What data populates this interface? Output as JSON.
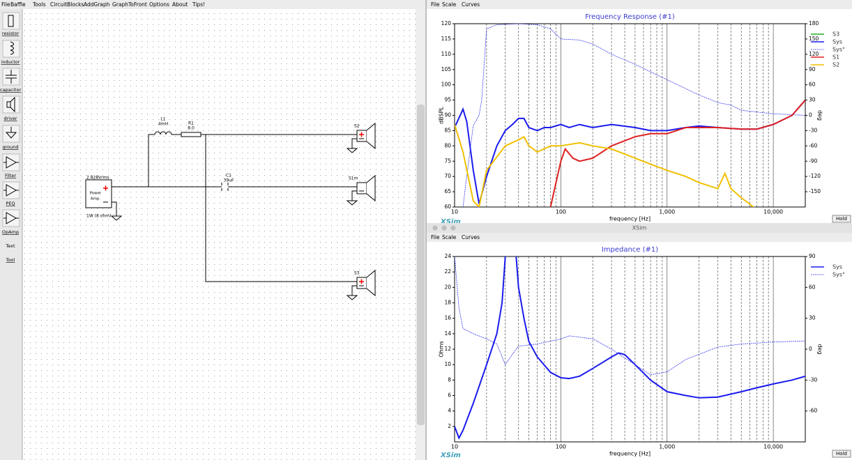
{
  "circuit_window": {
    "menu": [
      "File",
      "Baffle",
      "Tools",
      "CircuitBlocks",
      "AddGraph",
      "GraphToFront",
      "Options",
      "About",
      "Tips!"
    ],
    "toolbar": [
      "resistor",
      "inductor",
      "capacitor",
      "driver",
      "ground",
      "Filter",
      "PEQ",
      "OpAmp",
      "Text",
      "Tool"
    ],
    "amp": {
      "voltage": "2.828Vrms",
      "line1": "Power",
      "line2": "Amp.",
      "power": "1W (8 ohm)"
    },
    "parts": {
      "L1": {
        "name": "L1",
        "value": "4mH"
      },
      "R1": {
        "name": "R1",
        "value": "8.0"
      },
      "C1": {
        "name": "C1",
        "value": "39uF"
      },
      "S2": "S2",
      "S1m": "S1m",
      "S3": "S3"
    }
  },
  "graph_windows": {
    "menu": [
      "File",
      "Scale",
      "Curves"
    ],
    "window_title": "XSim",
    "logo": "XSim",
    "hold": "Hold"
  },
  "chart_data": [
    {
      "type": "line",
      "title": "Frequency Response (#1)",
      "xlabel": "frequency [Hz]",
      "ylabel": "dBSPL",
      "y2label": "deg",
      "log_x": true,
      "xlim": [
        10,
        20000
      ],
      "ylim": [
        60,
        120
      ],
      "y2lim": [
        -180,
        180
      ],
      "xticks": [
        10,
        100,
        {
          "value": 1000,
          "label": "1,000"
        },
        {
          "value": 10000,
          "label": "10,000"
        }
      ],
      "minor_xticks": [
        20,
        30,
        40,
        50,
        60,
        70,
        80,
        90,
        200,
        300,
        400,
        500,
        600,
        700,
        800,
        900,
        2000,
        3000,
        4000,
        5000,
        6000,
        7000,
        8000,
        9000
      ],
      "yticks": [
        60,
        65,
        70,
        75,
        80,
        85,
        90,
        95,
        100,
        105,
        110,
        115,
        120
      ],
      "y2ticks": [
        -150,
        -120,
        -90,
        -60,
        -30,
        0,
        30,
        60,
        90,
        120,
        150,
        180
      ],
      "series": [
        {
          "name": "S3",
          "color": "#22aa22",
          "x": [
            10,
            20000
          ],
          "values": [
            null,
            null
          ]
        },
        {
          "name": "Sys",
          "color": "#1a1aee",
          "x": [
            10,
            12,
            13,
            15,
            17,
            20,
            25,
            30,
            35,
            40,
            45,
            50,
            60,
            70,
            80,
            100,
            120,
            150,
            200,
            300,
            500,
            700,
            1000,
            1500,
            2000,
            3000,
            5000,
            7000,
            10000,
            15000,
            20000
          ],
          "values": [
            86,
            92,
            88,
            72,
            61,
            70,
            80,
            85,
            87,
            89,
            89,
            86,
            85,
            86,
            86,
            87,
            86,
            87,
            86,
            87,
            86,
            85,
            85,
            86,
            86.5,
            86,
            85.5,
            85.5,
            87,
            90,
            95
          ]
        },
        {
          "name": "Sys°",
          "color": "#3333ee",
          "dash": true,
          "axis": "y2",
          "x": [
            12,
            13,
            15,
            17,
            18,
            20,
            25,
            40,
            60,
            80,
            100,
            150,
            200,
            300,
            500,
            1000,
            2000,
            3000,
            4000,
            5000,
            10000,
            20000
          ],
          "values": [
            -180,
            -120,
            -20,
            0,
            30,
            170,
            178,
            180,
            178,
            170,
            150,
            148,
            140,
            120,
            100,
            70,
            40,
            25,
            20,
            10,
            3,
            0
          ]
        },
        {
          "name": "S1",
          "color": "#e02020",
          "x": [
            80,
            100,
            110,
            130,
            150,
            200,
            300,
            500,
            700,
            1000,
            1500,
            2000,
            3000,
            5000,
            7000,
            10000,
            15000,
            20000
          ],
          "values": [
            60,
            75,
            79,
            76,
            75,
            76,
            80,
            83,
            84,
            84,
            86,
            86,
            86,
            85.5,
            85.5,
            87,
            90,
            95
          ]
        },
        {
          "name": "S2",
          "color": "#f0c000",
          "x": [
            10,
            12,
            15,
            17,
            20,
            30,
            40,
            45,
            50,
            60,
            80,
            100,
            150,
            200,
            300,
            500,
            700,
            1000,
            1500,
            2000,
            3000,
            3500,
            4000,
            5000,
            6000,
            7000
          ],
          "values": [
            87,
            78,
            62,
            60,
            72,
            80,
            82,
            83,
            80,
            78,
            80,
            80,
            81,
            80,
            79,
            76,
            74,
            72,
            70,
            68,
            66,
            71,
            66,
            63,
            61,
            59
          ]
        }
      ]
    },
    {
      "type": "line",
      "title": "Impedance (#1)",
      "xlabel": "frequency [Hz]",
      "ylabel": "Ohms",
      "y2label": "deg",
      "log_x": true,
      "xlim": [
        10,
        20000
      ],
      "ylim": [
        0,
        24
      ],
      "y2lim": [
        -90,
        90
      ],
      "xticks": [
        10,
        100,
        {
          "value": 1000,
          "label": "1,000"
        },
        {
          "value": 10000,
          "label": "10,000"
        }
      ],
      "minor_xticks": [
        20,
        30,
        40,
        50,
        60,
        70,
        80,
        90,
        200,
        300,
        400,
        500,
        600,
        700,
        800,
        900,
        2000,
        3000,
        4000,
        5000,
        6000,
        7000,
        8000,
        9000
      ],
      "yticks": [
        2,
        4,
        6,
        8,
        10,
        12,
        14,
        16,
        18,
        20,
        22,
        24
      ],
      "y2ticks": [
        -60,
        -30,
        0,
        30,
        60,
        90
      ],
      "series": [
        {
          "name": "Sys",
          "color": "#1a1aee",
          "x": [
            10,
            11,
            12,
            15,
            20,
            25,
            28,
            30,
            33,
            36,
            38,
            40,
            45,
            50,
            60,
            80,
            100,
            120,
            150,
            200,
            300,
            350,
            400,
            500,
            700,
            1000,
            1500,
            2000,
            3000,
            5000,
            7000,
            10000,
            15000,
            20000
          ],
          "values": [
            2,
            0.5,
            1.5,
            5,
            10,
            14,
            18,
            24,
            28,
            28,
            24,
            20,
            16,
            13,
            11,
            9,
            8.3,
            8.2,
            8.5,
            9.5,
            11,
            11.5,
            11.3,
            10,
            8,
            6.5,
            6,
            5.7,
            5.8,
            6.5,
            7,
            7.5,
            8,
            8.5
          ]
        },
        {
          "name": "Sys°",
          "color": "#3333ee",
          "dash": true,
          "axis": "y2",
          "x": [
            10,
            11,
            12,
            15,
            20,
            25,
            30,
            35,
            40,
            60,
            100,
            120,
            200,
            300,
            500,
            700,
            1000,
            1500,
            2000,
            3000,
            5000,
            10000,
            20000
          ],
          "values": [
            90,
            40,
            20,
            15,
            10,
            5,
            -15,
            -5,
            3,
            5,
            10,
            13,
            10,
            0,
            -15,
            -25,
            -22,
            -10,
            -5,
            2,
            5,
            7,
            8
          ]
        }
      ]
    }
  ]
}
